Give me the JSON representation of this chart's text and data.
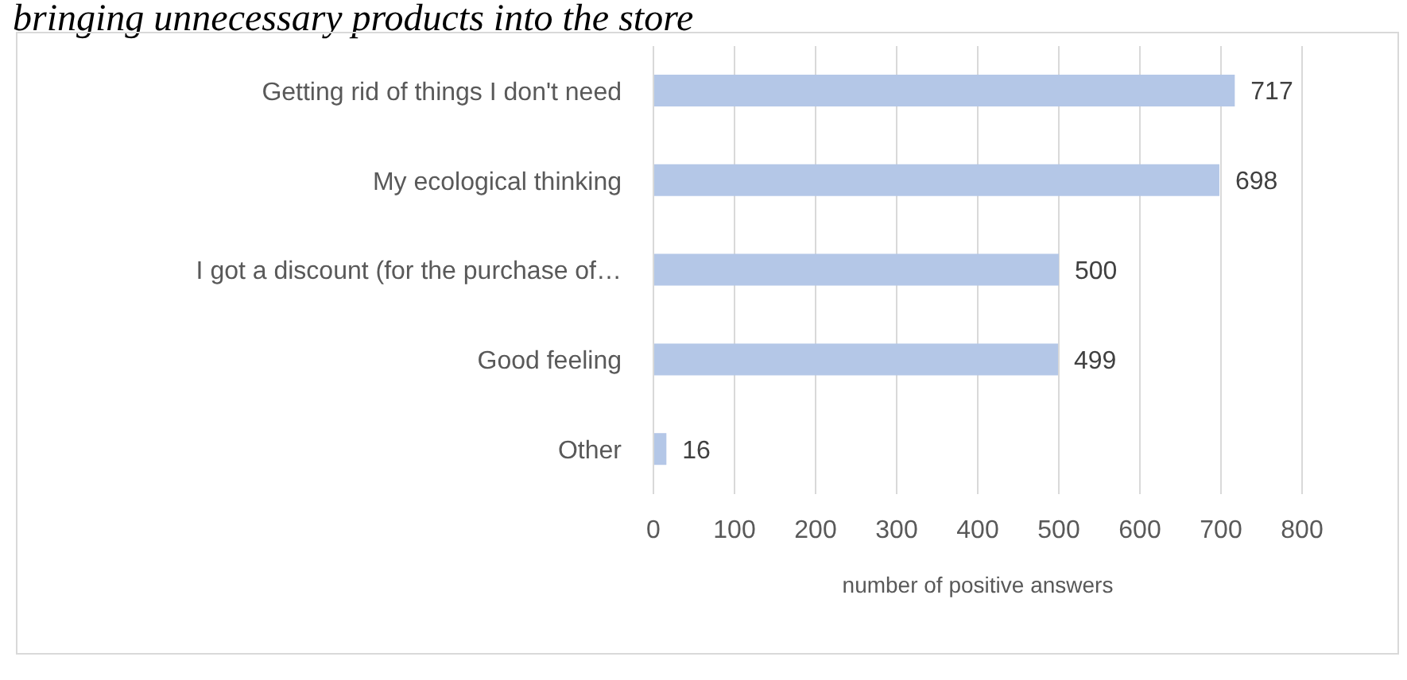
{
  "chart_data": {
    "type": "bar",
    "orientation": "horizontal",
    "title": "bringing unnecessary products into the store",
    "categories": [
      "Getting rid of things I don't need",
      "My ecological thinking",
      "I got a discount (for the purchase of…",
      "Good feeling",
      "Other"
    ],
    "values": [
      717,
      698,
      500,
      499,
      16
    ],
    "color": "#b4c7e7",
    "xlim": [
      0,
      800
    ],
    "xticks": [
      0,
      100,
      200,
      300,
      400,
      500,
      600,
      700,
      800
    ],
    "xlabel": "number of positive answers",
    "grid": "x",
    "data_labels": true
  }
}
